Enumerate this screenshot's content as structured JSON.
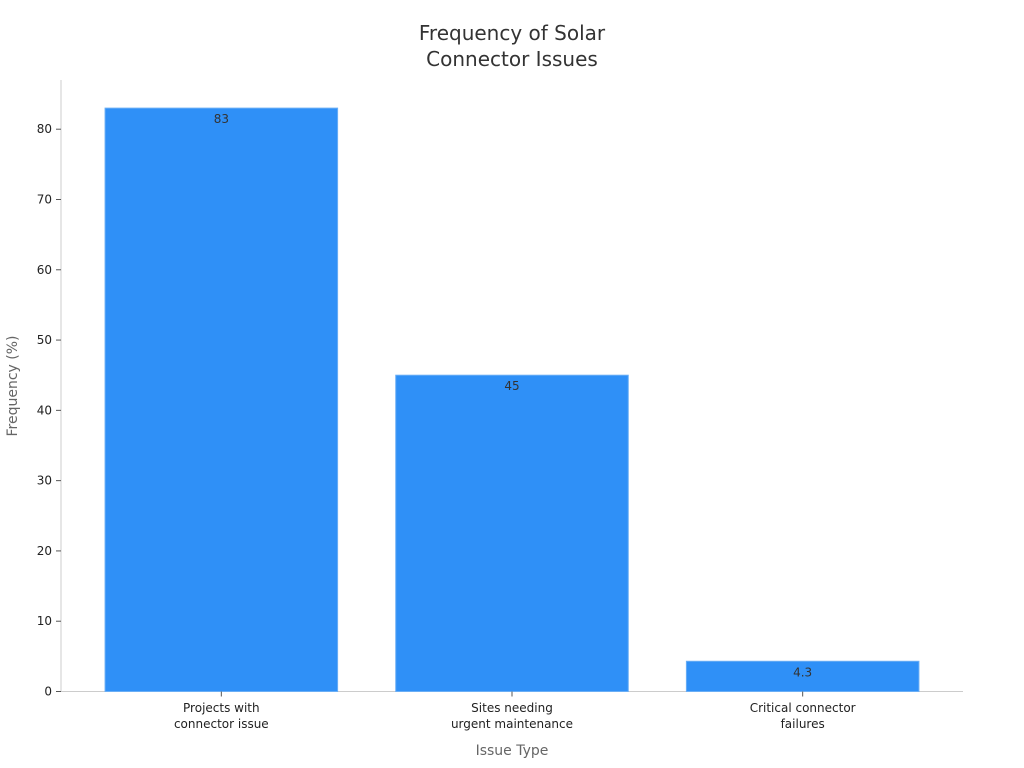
{
  "chart_data": {
    "type": "bar",
    "title_lines": [
      "Frequency of Solar",
      "Connector Issues"
    ],
    "xlabel": "Issue Type",
    "ylabel": "Frequency (%)",
    "categories": [
      [
        "Projects with",
        "connector issue"
      ],
      [
        "Sites needing",
        "urgent maintenance"
      ],
      [
        "Critical connector",
        "failures"
      ]
    ],
    "values": [
      83,
      45,
      4.3
    ],
    "value_labels": [
      "83",
      "45",
      "4.3"
    ],
    "yticks": [
      0,
      10,
      20,
      30,
      40,
      50,
      60,
      70,
      80
    ],
    "ylim": [
      0,
      87
    ],
    "grid": false,
    "colors": {
      "bar": "#2f90f7",
      "bar_edge": "#6aaef5",
      "axis": "#cccccc"
    }
  }
}
